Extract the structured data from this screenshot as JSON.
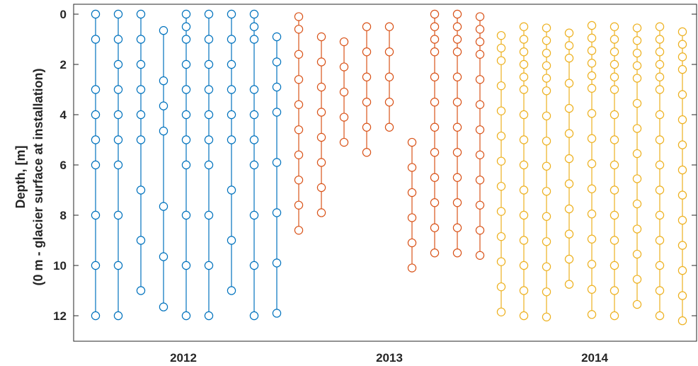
{
  "chart_data": {
    "type": "scatter",
    "title": "",
    "xlabel": "",
    "ylabel_lines": [
      "Depth, [m]",
      "(0 m - glacier surface at installation)"
    ],
    "y_reversed": true,
    "ylim": [
      0,
      13
    ],
    "y_ticks": [
      0,
      2,
      4,
      6,
      8,
      10,
      12
    ],
    "x_category_labels": [
      "2012",
      "2013",
      "2014"
    ],
    "grid": false,
    "legend": "none",
    "marker": "open-circle",
    "series": [
      {
        "year": "2012",
        "color": "#0072BD",
        "strings": [
          [
            0,
            1,
            3,
            4,
            5,
            6,
            8,
            10,
            12
          ],
          [
            0,
            1,
            2,
            3,
            4,
            5,
            6,
            8,
            10,
            12
          ],
          [
            0,
            1,
            2,
            3,
            4,
            5,
            7,
            9,
            11
          ],
          [
            0.65,
            2.65,
            3.65,
            4.65,
            7.65,
            9.65,
            11.65
          ],
          [
            0,
            0.5,
            1,
            2,
            3,
            4,
            5,
            6,
            8,
            10,
            12
          ],
          [
            0,
            1,
            2,
            3,
            4,
            5,
            6,
            8,
            10,
            12
          ],
          [
            0,
            1,
            2,
            3,
            4,
            5,
            7,
            9,
            11
          ],
          [
            0,
            0.5,
            1,
            3,
            4,
            5,
            6,
            8,
            10,
            12
          ],
          [
            0.9,
            1.9,
            2.9,
            3.9,
            5.9,
            7.9,
            9.9,
            11.9
          ]
        ]
      },
      {
        "year": "2013",
        "color": "#D95319",
        "strings": [
          [
            0.1,
            0.6,
            1.6,
            2.6,
            3.6,
            4.6,
            5.6,
            6.6,
            7.6,
            8.6
          ],
          [
            0.9,
            1.9,
            2.9,
            3.9,
            4.9,
            5.9,
            6.9,
            7.9
          ],
          [
            1.1,
            2.1,
            3.1,
            4.1,
            5.1
          ],
          [
            0.5,
            1.5,
            2.5,
            3.5,
            4.5,
            5.5
          ],
          [
            0.5,
            1.5,
            2.5,
            3.5,
            4.5
          ],
          [
            5.1,
            6.1,
            7.1,
            8.1,
            9.1,
            10.1
          ],
          [
            0,
            0.5,
            1,
            1.5,
            2.5,
            3.5,
            4.5,
            5.5,
            6.5,
            7.5,
            8.5,
            9.5
          ],
          [
            0,
            0.5,
            1,
            1.5,
            2.5,
            3.5,
            4.5,
            5.5,
            6.5,
            7.5,
            8.5,
            9.5
          ],
          [
            0.1,
            0.6,
            1.1,
            1.6,
            2.6,
            3.6,
            4.6,
            5.6,
            6.6,
            7.6,
            8.6,
            9.6
          ]
        ]
      },
      {
        "year": "2014",
        "color": "#EDB120",
        "strings": [
          [
            0.85,
            1.35,
            1.85,
            2.85,
            3.85,
            4.85,
            5.85,
            6.85,
            7.85,
            8.85,
            9.85,
            10.85,
            11.85
          ],
          [
            0.5,
            1,
            1.5,
            2,
            2.5,
            3,
            4,
            5,
            6,
            7,
            8,
            9,
            10,
            11,
            12
          ],
          [
            0.55,
            1.05,
            1.55,
            2.05,
            2.55,
            3.05,
            4.05,
            5.05,
            6.05,
            7.05,
            8.05,
            9.05,
            10.05,
            11.05,
            12.05
          ],
          [
            0.75,
            1.25,
            1.75,
            2.75,
            3.75,
            4.75,
            5.75,
            6.75,
            7.75,
            8.75,
            9.75,
            10.75
          ],
          [
            0.45,
            0.95,
            1.45,
            1.95,
            2.45,
            2.95,
            3.95,
            4.95,
            5.95,
            6.95,
            7.95,
            8.95,
            9.95,
            10.95,
            11.95
          ],
          [
            0.5,
            1,
            1.5,
            2,
            2.5,
            3,
            4,
            5,
            6,
            7,
            8,
            9,
            10,
            11,
            12
          ],
          [
            0.55,
            1.05,
            1.55,
            2.05,
            2.55,
            3.55,
            4.55,
            5.55,
            6.55,
            7.55,
            8.55,
            9.55,
            10.55,
            11.55
          ],
          [
            0.5,
            1,
            1.5,
            2,
            2.5,
            3,
            4,
            5,
            6,
            7,
            8,
            9,
            10,
            11,
            12
          ],
          [
            0.7,
            1.2,
            1.7,
            2.2,
            3.2,
            4.2,
            5.2,
            6.2,
            7.2,
            8.2,
            9.2,
            10.2,
            11.2,
            12.2
          ]
        ]
      }
    ]
  }
}
